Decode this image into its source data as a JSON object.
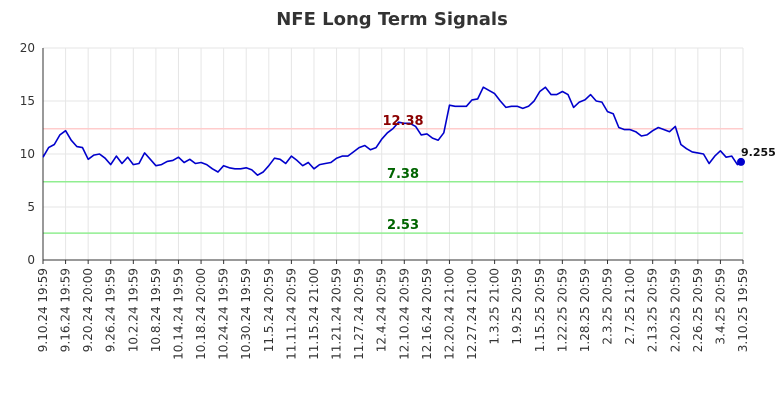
{
  "chart_data": {
    "type": "line",
    "title": "NFE Long Term Signals",
    "xlabel": "",
    "ylabel": "",
    "ylim": [
      0,
      20
    ],
    "yticks": [
      0,
      5,
      10,
      15,
      20
    ],
    "grid": true,
    "x_tick_labels": [
      "9.10.24 19:59",
      "9.16.24 19:59",
      "9.20.24 20:00",
      "9.26.24 19:59",
      "10.2.24 19:59",
      "10.8.24 19:59",
      "10.14.24 19:59",
      "10.18.24 20:00",
      "10.24.24 19:59",
      "10.30.24 19:59",
      "11.5.24 20:59",
      "11.11.24 20:59",
      "11.15.24 21:00",
      "11.21.24 20:59",
      "11.27.24 20:59",
      "12.4.24 20:59",
      "12.10.24 20:59",
      "12.16.24 20:59",
      "12.20.24 21:00",
      "12.27.24 21:00",
      "1.3.25 21:00",
      "1.9.25 20:59",
      "1.15.25 20:59",
      "1.22.25 20:59",
      "1.28.25 20:59",
      "2.3.25 20:59",
      "2.7.25 21:00",
      "2.13.25 20:59",
      "2.20.25 20:59",
      "2.26.25 20:59",
      "3.4.25 20:59",
      "3.10.25 19:59"
    ],
    "series": [
      {
        "color": "#0000cc",
        "values": [
          9.7,
          10.6,
          10.9,
          11.8,
          12.2,
          11.3,
          10.7,
          10.6,
          9.5,
          9.9,
          10.0,
          9.6,
          9.0,
          9.8,
          9.1,
          9.7,
          9.0,
          9.1,
          10.1,
          9.5,
          8.9,
          9.0,
          9.3,
          9.4,
          9.7,
          9.2,
          9.5,
          9.1,
          9.2,
          9.0,
          8.6,
          8.3,
          8.9,
          8.7,
          8.6,
          8.6,
          8.7,
          8.5,
          8.0,
          8.3,
          8.9,
          9.6,
          9.5,
          9.1,
          9.8,
          9.4,
          8.9,
          9.2,
          8.6,
          9.0,
          9.1,
          9.2,
          9.6,
          9.8,
          9.8,
          10.2,
          10.6,
          10.8,
          10.4,
          10.6,
          11.4,
          12.0,
          12.4,
          13.0,
          12.9,
          12.9,
          12.6,
          11.8,
          11.9,
          11.5,
          11.3,
          12.0,
          14.6,
          14.5,
          14.5,
          14.5,
          15.1,
          15.2,
          16.3,
          16.0,
          15.7,
          15.0,
          14.4,
          14.5,
          14.5,
          14.3,
          14.5,
          15.0,
          15.9,
          16.3,
          15.6,
          15.6,
          15.9,
          15.6,
          14.4,
          14.9,
          15.1,
          15.6,
          15.0,
          14.9,
          14.0,
          13.8,
          12.5,
          12.3,
          12.3,
          12.1,
          11.7,
          11.8,
          12.2,
          12.5,
          12.3,
          12.1,
          12.6,
          10.9,
          10.5,
          10.2,
          10.1,
          10.0,
          9.1,
          9.8,
          10.3,
          9.7,
          9.8,
          9.0,
          9.255
        ]
      }
    ],
    "last_value": 9.255,
    "last_value_label": "9.255",
    "horizontal_lines": [
      {
        "value": 12.38,
        "label": "12.38",
        "line_color": "#ffcccc",
        "label_color": "#8b0000"
      },
      {
        "value": 7.38,
        "label": "7.38",
        "line_color": "#90ee90",
        "label_color": "#006400"
      },
      {
        "value": 2.53,
        "label": "2.53",
        "line_color": "#90ee90",
        "label_color": "#006400"
      }
    ]
  }
}
